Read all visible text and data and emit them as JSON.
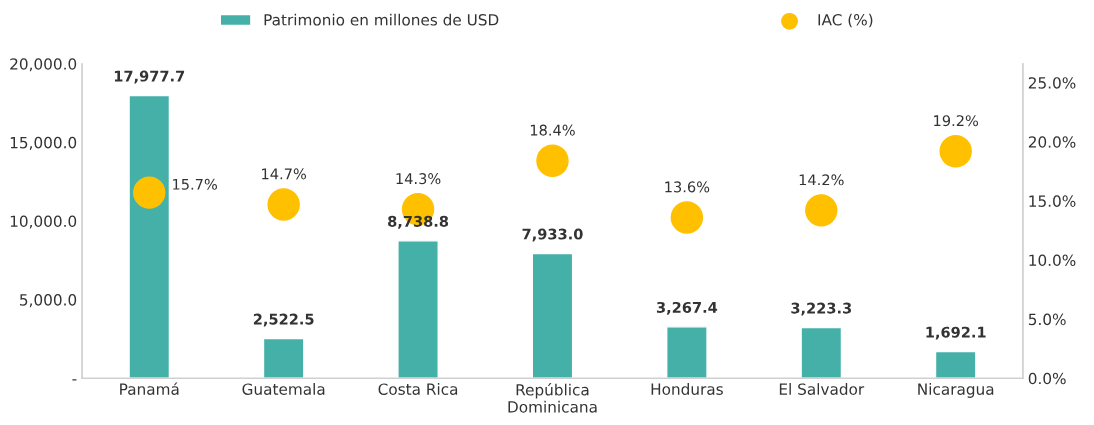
{
  "chart_data": {
    "type": "bar",
    "categories": [
      "Panamá",
      "Guatemala",
      "Costa Rica",
      "República\nDominicana",
      "Honduras",
      "El Salvador",
      "Nicaragua"
    ],
    "series": [
      {
        "name": "Patrimonio en millones de USD",
        "color": "#45b0a8",
        "values": [
          17977.7,
          2522.5,
          8738.8,
          7933.0,
          3267.4,
          3223.3,
          1692.1
        ],
        "value_labels": [
          "17,977.7",
          "2,522.5",
          "8,738.8",
          "7,933.0",
          "3,267.4",
          "3,223.3",
          "1,692.1"
        ]
      },
      {
        "name": "IAC (%)",
        "type": "scatter",
        "axis": "y2",
        "color": "#ffc000",
        "marker": "circle",
        "values": [
          15.7,
          14.7,
          14.3,
          18.4,
          13.6,
          14.2,
          19.2
        ],
        "value_labels": [
          "15.7%",
          "14.7%",
          "14.3%",
          "18.4%",
          "13.6%",
          "14.2%",
          "19.2%"
        ]
      }
    ],
    "ylim": [
      0,
      20000
    ],
    "yticks": [
      {
        "value": 0,
        "label": "-"
      },
      {
        "value": 5000,
        "label": "5,000.0"
      },
      {
        "value": 10000,
        "label": "10,000.0"
      },
      {
        "value": 15000,
        "label": "15,000.0"
      },
      {
        "value": 20000,
        "label": "20,000.0"
      }
    ],
    "y2lim": [
      0,
      26.6
    ],
    "y2ticks": [
      {
        "value": 0,
        "label": "0.0%"
      },
      {
        "value": 5,
        "label": "5.0%"
      },
      {
        "value": 10,
        "label": "10.0%"
      },
      {
        "value": 15,
        "label": "15.0%"
      },
      {
        "value": 20,
        "label": "20.0%"
      },
      {
        "value": 25,
        "label": "25.0%"
      }
    ],
    "legend": "top",
    "grid": false
  }
}
